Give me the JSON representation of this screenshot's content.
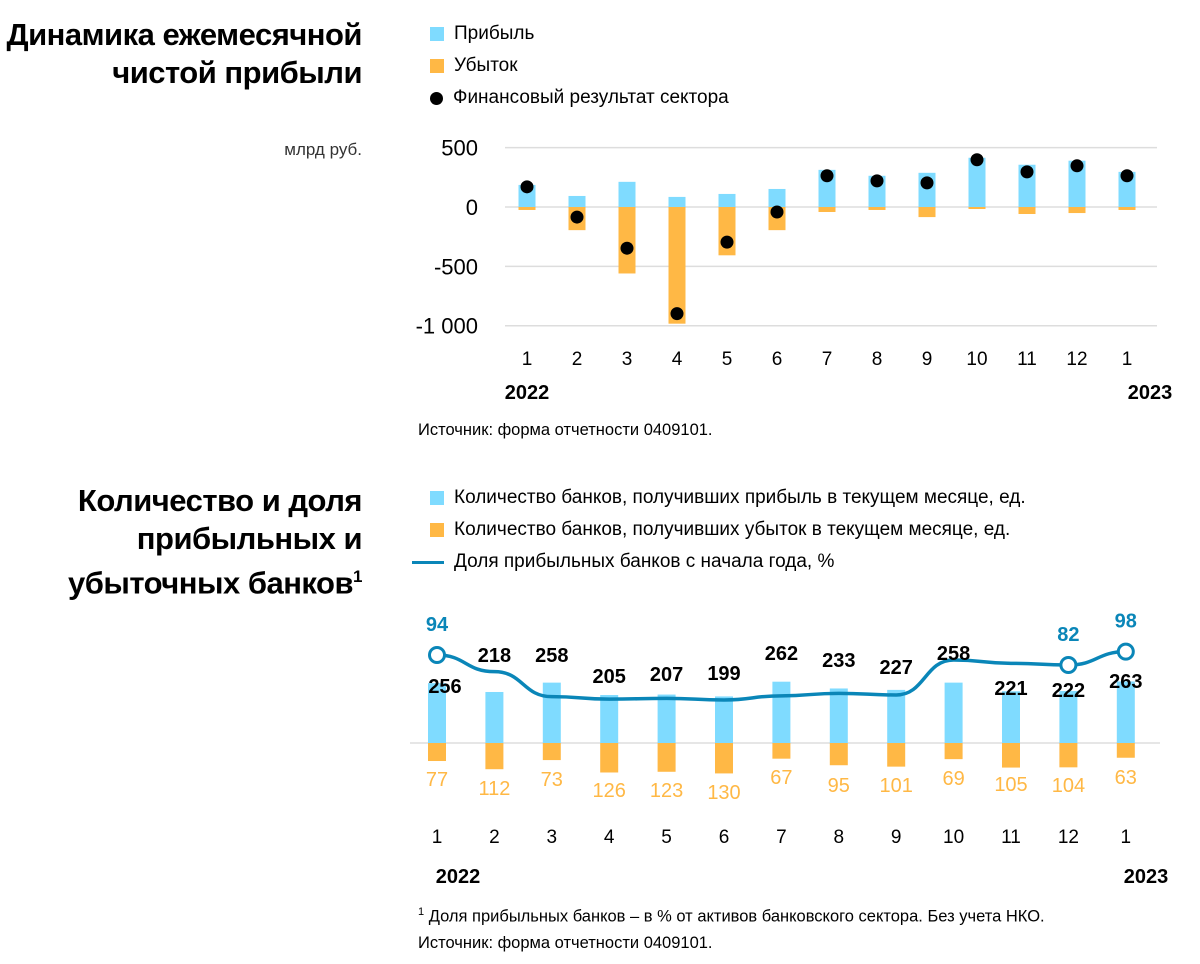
{
  "colors": {
    "profit": "#7fdbff",
    "loss": "#ffb845",
    "result": "#000000",
    "line": "#0a86b8",
    "grid": "#dddddd"
  },
  "chart_data": [
    {
      "type": "bar",
      "title": "Динамика ежемесячной чистой прибыли",
      "unit": "млрд руб.",
      "categories": [
        "1",
        "2",
        "3",
        "4",
        "5",
        "6",
        "7",
        "8",
        "9",
        "10",
        "11",
        "12",
        "1"
      ],
      "years": {
        "first": "2022",
        "last": "2023"
      },
      "yticks": [
        "500",
        "0",
        "-500",
        "-1 000"
      ],
      "ylim": [
        -1000,
        500
      ],
      "grid": true,
      "series": [
        {
          "name": "Прибыль",
          "type": "bar",
          "values": [
            186,
            93,
            212,
            85,
            110,
            152,
            313,
            263,
            288,
            415,
            356,
            390,
            296
          ]
        },
        {
          "name": "Убыток",
          "type": "bar",
          "values": [
            -25,
            -195,
            -560,
            -983,
            -407,
            -195,
            -42,
            -25,
            -85,
            -17,
            -59,
            -51,
            -25
          ]
        },
        {
          "name": "Финансовый результат сектора",
          "type": "scatter",
          "values": [
            170,
            -85,
            -347,
            -898,
            -296,
            -42,
            263,
            220,
            203,
            398,
            296,
            347,
            263
          ]
        }
      ],
      "source": "Источник: форма отчетности 0409101."
    },
    {
      "type": "bar",
      "title": "Количество и доля прибыльных и убыточных банков",
      "title_sup": "1",
      "categories": [
        "1",
        "2",
        "3",
        "4",
        "5",
        "6",
        "7",
        "8",
        "9",
        "10",
        "11",
        "12",
        "1"
      ],
      "years": {
        "first": "2022",
        "last": "2023"
      },
      "series": [
        {
          "name": "Количество банков, получивших прибыль в текущем месяце, ед.",
          "type": "bar",
          "values": [
            256,
            218,
            258,
            205,
            207,
            199,
            262,
            233,
            227,
            258,
            221,
            222,
            263
          ]
        },
        {
          "name": "Количество банков, получивших убыток в текущем месяце, ед.",
          "type": "bar",
          "values": [
            77,
            112,
            73,
            126,
            123,
            130,
            67,
            95,
            101,
            69,
            105,
            104,
            63
          ]
        },
        {
          "name": "Доля прибыльных банков с начала года, %",
          "type": "line",
          "values": [
            94,
            74,
            44,
            41,
            42,
            40,
            45,
            48,
            46,
            88,
            84,
            82,
            98
          ],
          "labeled": {
            "0": "94",
            "11": "82",
            "12": "98"
          }
        }
      ],
      "footnote": "Доля прибыльных банков – в % от активов банковского сектора. Без учета НКО.",
      "footnote_mark": "1",
      "source": "Источник: форма отчетности 0409101."
    }
  ]
}
